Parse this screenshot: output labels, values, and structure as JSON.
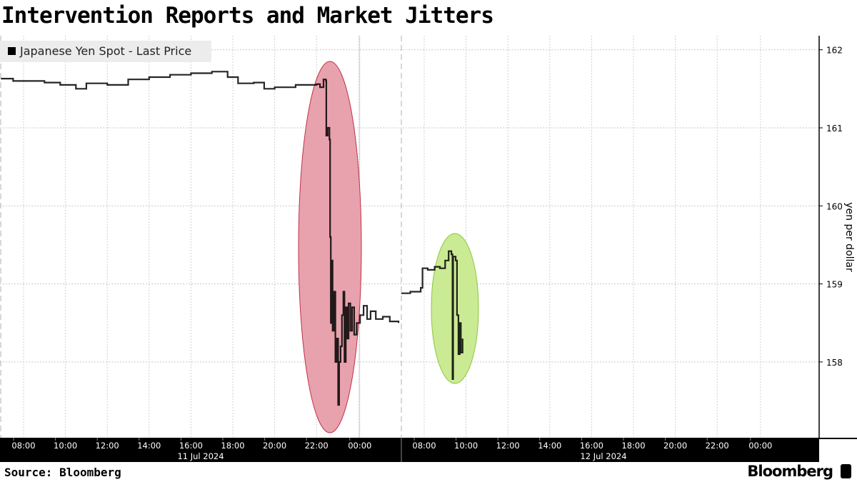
{
  "chart_data": {
    "type": "line",
    "title": "Intervention Reports and Market Jitters",
    "ylabel": "yen per dollar",
    "ylim": [
      157.0,
      162.1
    ],
    "yticks": [
      158,
      159,
      160,
      161,
      162
    ],
    "y_axis_side": "right",
    "grid": true,
    "legend": {
      "position": "top-left",
      "entries": [
        "Japanese Yen Spot - Last Price"
      ]
    },
    "x_days": [
      {
        "label": "11 Jul 2024",
        "ticks": [
          "08:00",
          "10:00",
          "12:00",
          "14:00",
          "16:00",
          "18:00",
          "20:00",
          "22:00",
          "00:00"
        ]
      },
      {
        "label": "12 Jul 2024",
        "ticks": [
          "08:00",
          "10:00",
          "12:00",
          "14:00",
          "16:00",
          "18:00",
          "20:00",
          "22:00",
          "00:00"
        ]
      }
    ],
    "series": [
      {
        "name": "Japanese Yen Spot - Last Price",
        "color": "#000000",
        "segments": [
          [
            [
              "2024-07-11 06:55",
              161.63
            ],
            [
              "2024-07-11 07:30",
              161.6
            ],
            [
              "2024-07-11 08:00",
              161.6
            ],
            [
              "2024-07-11 09:00",
              161.58
            ],
            [
              "2024-07-11 09:45",
              161.55
            ],
            [
              "2024-07-11 10:30",
              161.5
            ],
            [
              "2024-07-11 11:00",
              161.57
            ],
            [
              "2024-07-11 12:00",
              161.55
            ],
            [
              "2024-07-11 13:00",
              161.62
            ],
            [
              "2024-07-11 14:00",
              161.65
            ],
            [
              "2024-07-11 15:00",
              161.68
            ],
            [
              "2024-07-11 16:00",
              161.7
            ],
            [
              "2024-07-11 17:00",
              161.72
            ],
            [
              "2024-07-11 17:45",
              161.65
            ],
            [
              "2024-07-11 18:15",
              161.57
            ],
            [
              "2024-07-11 19:00",
              161.58
            ],
            [
              "2024-07-11 19:30",
              161.5
            ],
            [
              "2024-07-11 20:00",
              161.52
            ],
            [
              "2024-07-11 21:00",
              161.55
            ],
            [
              "2024-07-11 22:00",
              161.56
            ],
            [
              "2024-07-11 22:10",
              161.52
            ],
            [
              "2024-07-11 22:20",
              161.62
            ],
            [
              "2024-07-11 22:27",
              161.6
            ],
            [
              "2024-07-11 22:28",
              160.9
            ],
            [
              "2024-07-11 22:32",
              161.0
            ],
            [
              "2024-07-11 22:37",
              160.85
            ],
            [
              "2024-07-11 22:39",
              159.6
            ],
            [
              "2024-07-11 22:41",
              158.5
            ],
            [
              "2024-07-11 22:43",
              159.3
            ],
            [
              "2024-07-11 22:46",
              158.4
            ],
            [
              "2024-07-11 22:50",
              158.9
            ],
            [
              "2024-07-11 22:54",
              158.0
            ],
            [
              "2024-07-11 22:58",
              158.3
            ],
            [
              "2024-07-11 23:02",
              157.45
            ],
            [
              "2024-07-11 23:05",
              158.0
            ],
            [
              "2024-07-11 23:09",
              158.2
            ],
            [
              "2024-07-11 23:13",
              158.6
            ],
            [
              "2024-07-11 23:17",
              158.9
            ],
            [
              "2024-07-11 23:20",
              158.0
            ],
            [
              "2024-07-11 23:24",
              158.7
            ],
            [
              "2024-07-11 23:28",
              158.3
            ],
            [
              "2024-07-11 23:32",
              158.75
            ],
            [
              "2024-07-11 23:37",
              158.4
            ],
            [
              "2024-07-11 23:42",
              158.7
            ],
            [
              "2024-07-11 23:48",
              158.35
            ],
            [
              "2024-07-11 23:55",
              158.5
            ],
            [
              "2024-07-12 00:05",
              158.6
            ],
            [
              "2024-07-12 00:15",
              158.72
            ],
            [
              "2024-07-12 00:25",
              158.55
            ],
            [
              "2024-07-12 00:35",
              158.65
            ],
            [
              "2024-07-12 00:50",
              158.55
            ],
            [
              "2024-07-12 01:10",
              158.58
            ],
            [
              "2024-07-12 01:30",
              158.52
            ],
            [
              "2024-07-12 01:55",
              158.5
            ]
          ],
          [
            [
              "2024-07-12 06:54",
              158.88
            ],
            [
              "2024-07-12 07:20",
              158.9
            ],
            [
              "2024-07-12 07:50",
              158.95
            ],
            [
              "2024-07-12 07:55",
              159.2
            ],
            [
              "2024-07-12 08:10",
              159.18
            ],
            [
              "2024-07-12 08:30",
              159.22
            ],
            [
              "2024-07-12 08:45",
              159.2
            ],
            [
              "2024-07-12 09:00",
              159.3
            ],
            [
              "2024-07-12 09:10",
              159.42
            ],
            [
              "2024-07-12 09:18",
              159.38
            ],
            [
              "2024-07-12 09:21",
              157.78
            ],
            [
              "2024-07-12 09:23",
              159.35
            ],
            [
              "2024-07-12 09:30",
              159.3
            ],
            [
              "2024-07-12 09:34",
              158.6
            ],
            [
              "2024-07-12 09:38",
              158.1
            ],
            [
              "2024-07-12 09:42",
              158.5
            ],
            [
              "2024-07-12 09:45",
              158.12
            ],
            [
              "2024-07-12 09:50",
              158.3
            ]
          ]
        ]
      }
    ]
  },
  "footer": {
    "source": "Source: Bloomberg",
    "brand": "Bloomberg"
  }
}
